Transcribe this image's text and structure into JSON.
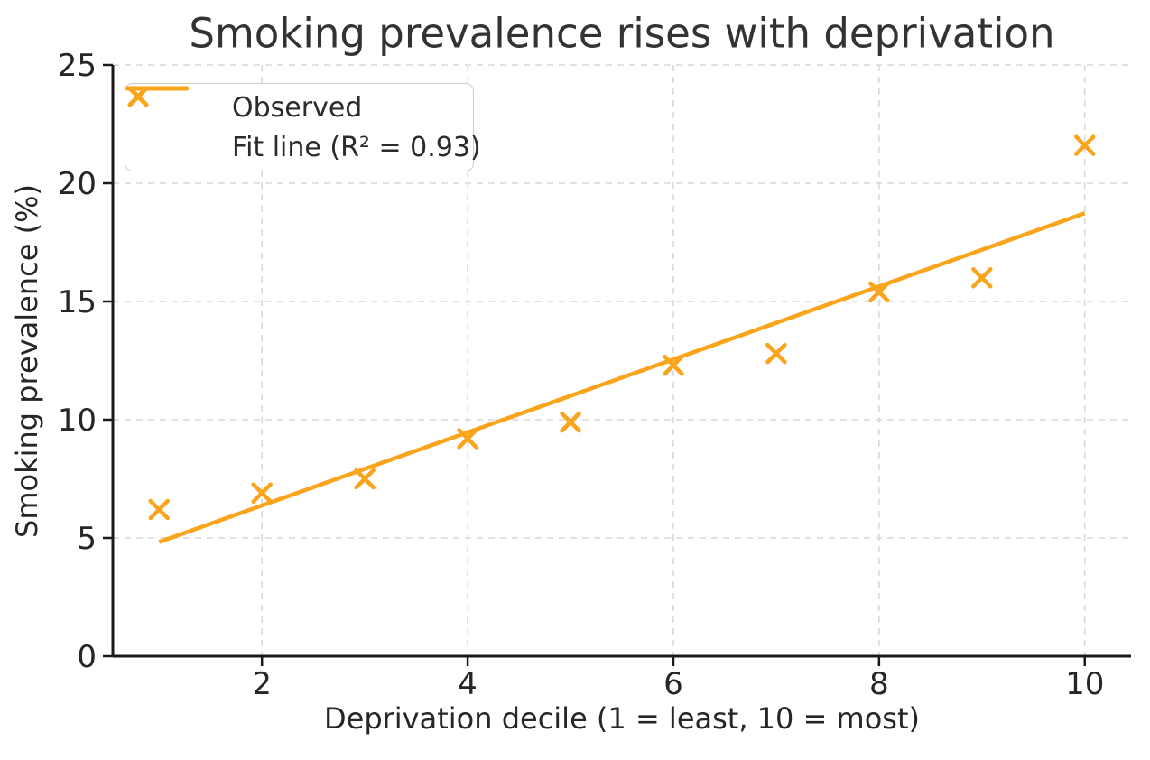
{
  "figure": {
    "background": "#ffffff"
  },
  "colors": {
    "accent_orange": "#FAA41B",
    "grid": "#d9d9d9",
    "spine": "#1a1a1a",
    "text_dark": "#262626",
    "title_text": "#333333",
    "legend_border": "#cccccc"
  },
  "chart_data": {
    "type": "scatter",
    "title": "Smoking prevalence rises with deprivation",
    "xlabel": "Deprivation decile (1 = least, 10 = most)",
    "ylabel": "Smoking prevalence (%)",
    "xlim": [
      0.55,
      10.45
    ],
    "ylim": [
      0,
      25
    ],
    "x_ticks": [
      2,
      4,
      6,
      8,
      10
    ],
    "y_ticks": [
      0,
      5,
      10,
      15,
      20,
      25
    ],
    "x_tick_labels": [
      "2",
      "4",
      "6",
      "8",
      "10"
    ],
    "y_tick_labels": [
      "0",
      "5",
      "10",
      "15",
      "20",
      "25"
    ],
    "grid": "dashed, light gray, horizontal and vertical",
    "legend_position": "upper-left",
    "series": [
      {
        "name": "Observed",
        "type": "scatter",
        "marker": "x",
        "color": "#FAA41B",
        "x": [
          1,
          2,
          3,
          4,
          5,
          6,
          7,
          8,
          9,
          10
        ],
        "y": [
          6.2,
          6.9,
          7.5,
          9.2,
          9.9,
          12.3,
          12.8,
          15.4,
          16.0,
          21.6
        ]
      },
      {
        "name": "Fit line (R² = 0.93)",
        "type": "line",
        "color": "#FAA41B",
        "r_squared": 0.93,
        "x": [
          1,
          10
        ],
        "y": [
          4.83,
          18.73
        ]
      }
    ]
  }
}
